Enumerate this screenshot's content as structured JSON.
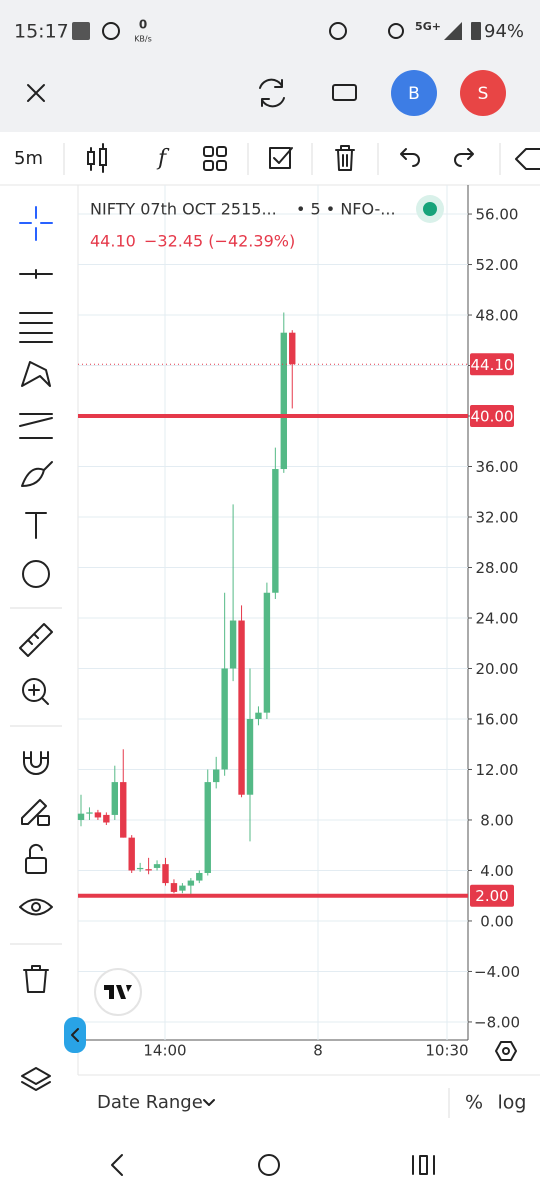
{
  "status_bar": {
    "time": "15:17",
    "speed": "0",
    "speed_unit": "KB/s",
    "network": "5G+",
    "battery": "94%"
  },
  "top_bar": {
    "avatar_1": "B",
    "avatar_2": "S"
  },
  "toolbar": {
    "interval": "5m"
  },
  "chart_data": {
    "type": "candlestick",
    "title": "NIFTY 07th OCT 2515...",
    "subtitle": "• 5 • NFO-...",
    "last_label": "44.10",
    "change": "−32.45 (−42.39%)",
    "open": [
      8,
      8.5,
      8.6,
      8.4,
      8.4,
      11,
      6.6,
      4.1,
      4.1,
      4.2,
      4.5,
      3,
      2.4,
      2.8,
      3.2,
      3.8,
      11,
      12,
      20,
      23.8,
      10,
      16,
      16.5,
      26,
      35.8,
      46.6
    ],
    "high": [
      10,
      9,
      8.8,
      8.6,
      12.3,
      13.6,
      6.8,
      4.6,
      5,
      4.8,
      5,
      3.3,
      3,
      3.4,
      4,
      12,
      13,
      26,
      33,
      25,
      20,
      17,
      26.8,
      37.5,
      48.2,
      46.8
    ],
    "low": [
      7.5,
      8,
      8,
      7.6,
      8,
      6.6,
      3.8,
      3.9,
      3.7,
      4,
      2.8,
      2.2,
      2.2,
      2,
      3,
      3.6,
      10.5,
      11.5,
      19,
      9.8,
      6.3,
      15.5,
      16,
      25.5,
      35.5,
      40.6
    ],
    "close": [
      8.5,
      8.6,
      8.2,
      7.8,
      11,
      6.6,
      4,
      4.2,
      4,
      4.5,
      3,
      2.3,
      2.8,
      3.2,
      3.8,
      11,
      12,
      20,
      23.8,
      10,
      16,
      16.5,
      26,
      35.8,
      46.6,
      44.1
    ],
    "up_color": "#54b986",
    "down_color": "#e5394a",
    "ylim": [
      -9.43,
      58.3
    ],
    "yticks": [
      {
        "value": 56,
        "label": "56.00"
      },
      {
        "value": 52,
        "label": "52.00"
      },
      {
        "value": 48,
        "label": "48.00"
      },
      {
        "value": 44,
        "label": "44.00"
      },
      {
        "value": 40,
        "label": "40.00"
      },
      {
        "value": 36,
        "label": "36.00"
      },
      {
        "value": 32,
        "label": "32.00"
      },
      {
        "value": 28,
        "label": "28.00"
      },
      {
        "value": 24,
        "label": "24.00"
      },
      {
        "value": 20,
        "label": "20.00"
      },
      {
        "value": 16,
        "label": "16.00"
      },
      {
        "value": 12,
        "label": "12.00"
      },
      {
        "value": 8,
        "label": "8.00"
      },
      {
        "value": 4,
        "label": "4.00"
      },
      {
        "value": 0,
        "label": "0.00"
      },
      {
        "value": -4,
        "label": "−4.00"
      },
      {
        "value": -8,
        "label": "−8.00"
      }
    ],
    "hidden_ticks": [
      44,
      40
    ],
    "xtick_labels": [
      "14:00",
      "8",
      "10:30"
    ],
    "price_lines": [
      {
        "value": 40,
        "label": "40.00"
      },
      {
        "value": 2,
        "label": "2.00"
      }
    ],
    "grid": true
  },
  "bottom_bar": {
    "date_range": "Date Range",
    "percent": "%",
    "log": "log"
  }
}
